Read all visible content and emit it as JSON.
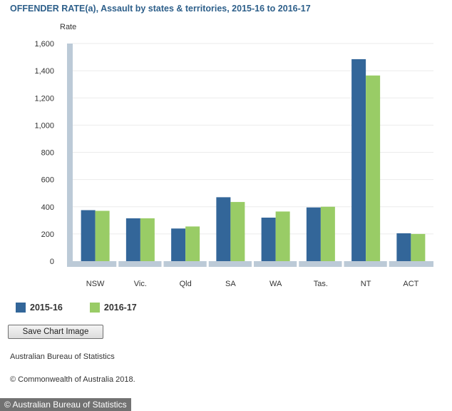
{
  "chart_data": {
    "type": "bar",
    "title": "OFFENDER RATE(a), Assault by states & territories, 2015-16 to 2016-17",
    "ylabel": "Rate",
    "xlabel": "",
    "ylim": [
      0,
      1600
    ],
    "yticks": [
      "0",
      "200",
      "400",
      "600",
      "800",
      "1,000",
      "1,200",
      "1,400",
      "1,600"
    ],
    "ytick_values": [
      0,
      200,
      400,
      600,
      800,
      1000,
      1200,
      1400,
      1600
    ],
    "categories": [
      "NSW",
      "Vic.",
      "Qld",
      "SA",
      "WA",
      "Tas.",
      "NT",
      "ACT"
    ],
    "series": [
      {
        "name": "2015-16",
        "color": "#336699",
        "values": [
          375,
          315,
          240,
          470,
          320,
          395,
          1485,
          205
        ]
      },
      {
        "name": "2016-17",
        "color": "#99cc66",
        "values": [
          370,
          315,
          255,
          435,
          365,
          400,
          1365,
          200
        ]
      }
    ],
    "grid": true,
    "legend_position": "bottom-left"
  },
  "controls": {
    "save_label": "Save Chart Image"
  },
  "footer": {
    "source": "Australian Bureau of Statistics",
    "copyright": "© Commonwealth of Australia 2018."
  },
  "watermark": "© Australian Bureau of Statistics"
}
